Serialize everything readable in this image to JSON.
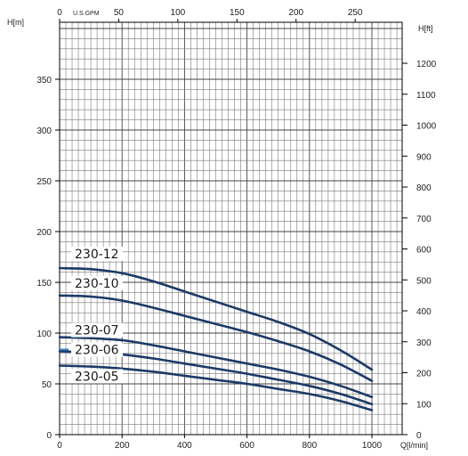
{
  "chart_data": {
    "type": "line",
    "title": "",
    "units": {
      "left_axis": "H[m]",
      "right_axis": "H[ft]",
      "top_axis": "U.S.GPM",
      "bottom_axis": "Q[l/min]"
    },
    "x_lpm_ticks": [
      0,
      200,
      400,
      600,
      800,
      1000
    ],
    "x_gpm_ticks": [
      0,
      50,
      100,
      150,
      200,
      250
    ],
    "y_m_ticks": [
      0,
      50,
      100,
      150,
      200,
      250,
      300,
      350
    ],
    "y_ft_ticks": [
      0,
      100,
      200,
      300,
      400,
      500,
      600,
      700,
      800,
      900,
      1000,
      1100,
      1200
    ],
    "xlim": [
      0,
      1070
    ],
    "ylim": [
      0,
      400
    ],
    "grid": true,
    "series": [
      {
        "name": "230-12",
        "x": [
          0,
          100,
          200,
          300,
          400,
          500,
          600,
          700,
          800,
          900,
          1000
        ],
        "y": [
          164,
          163,
          159,
          151,
          141,
          131,
          121,
          111,
          99,
          83,
          64
        ]
      },
      {
        "name": "230-10",
        "x": [
          0,
          100,
          200,
          300,
          400,
          500,
          600,
          700,
          800,
          900,
          1000
        ],
        "y": [
          137,
          136,
          132,
          125,
          117,
          109,
          101,
          92,
          82,
          69,
          53
        ]
      },
      {
        "name": "230-07",
        "x": [
          0,
          100,
          200,
          300,
          400,
          500,
          600,
          700,
          800,
          900,
          1000
        ],
        "y": [
          96,
          95,
          93,
          88,
          82,
          76,
          70,
          64,
          57,
          48,
          37
        ]
      },
      {
        "name": "230-06",
        "x": [
          0,
          100,
          200,
          300,
          400,
          500,
          600,
          700,
          800,
          900,
          1000
        ],
        "y": [
          82,
          81,
          79,
          75,
          70,
          65,
          60,
          54,
          48,
          40,
          30
        ]
      },
      {
        "name": "230-05",
        "x": [
          0,
          100,
          200,
          300,
          400,
          500,
          600,
          700,
          800,
          900,
          1000
        ],
        "y": [
          68,
          67,
          65,
          62,
          58,
          54,
          50,
          45,
          40,
          33,
          24
        ]
      }
    ]
  },
  "colors": {
    "curve": "#1c3a66",
    "highlight_marker": "#2f80c8"
  }
}
